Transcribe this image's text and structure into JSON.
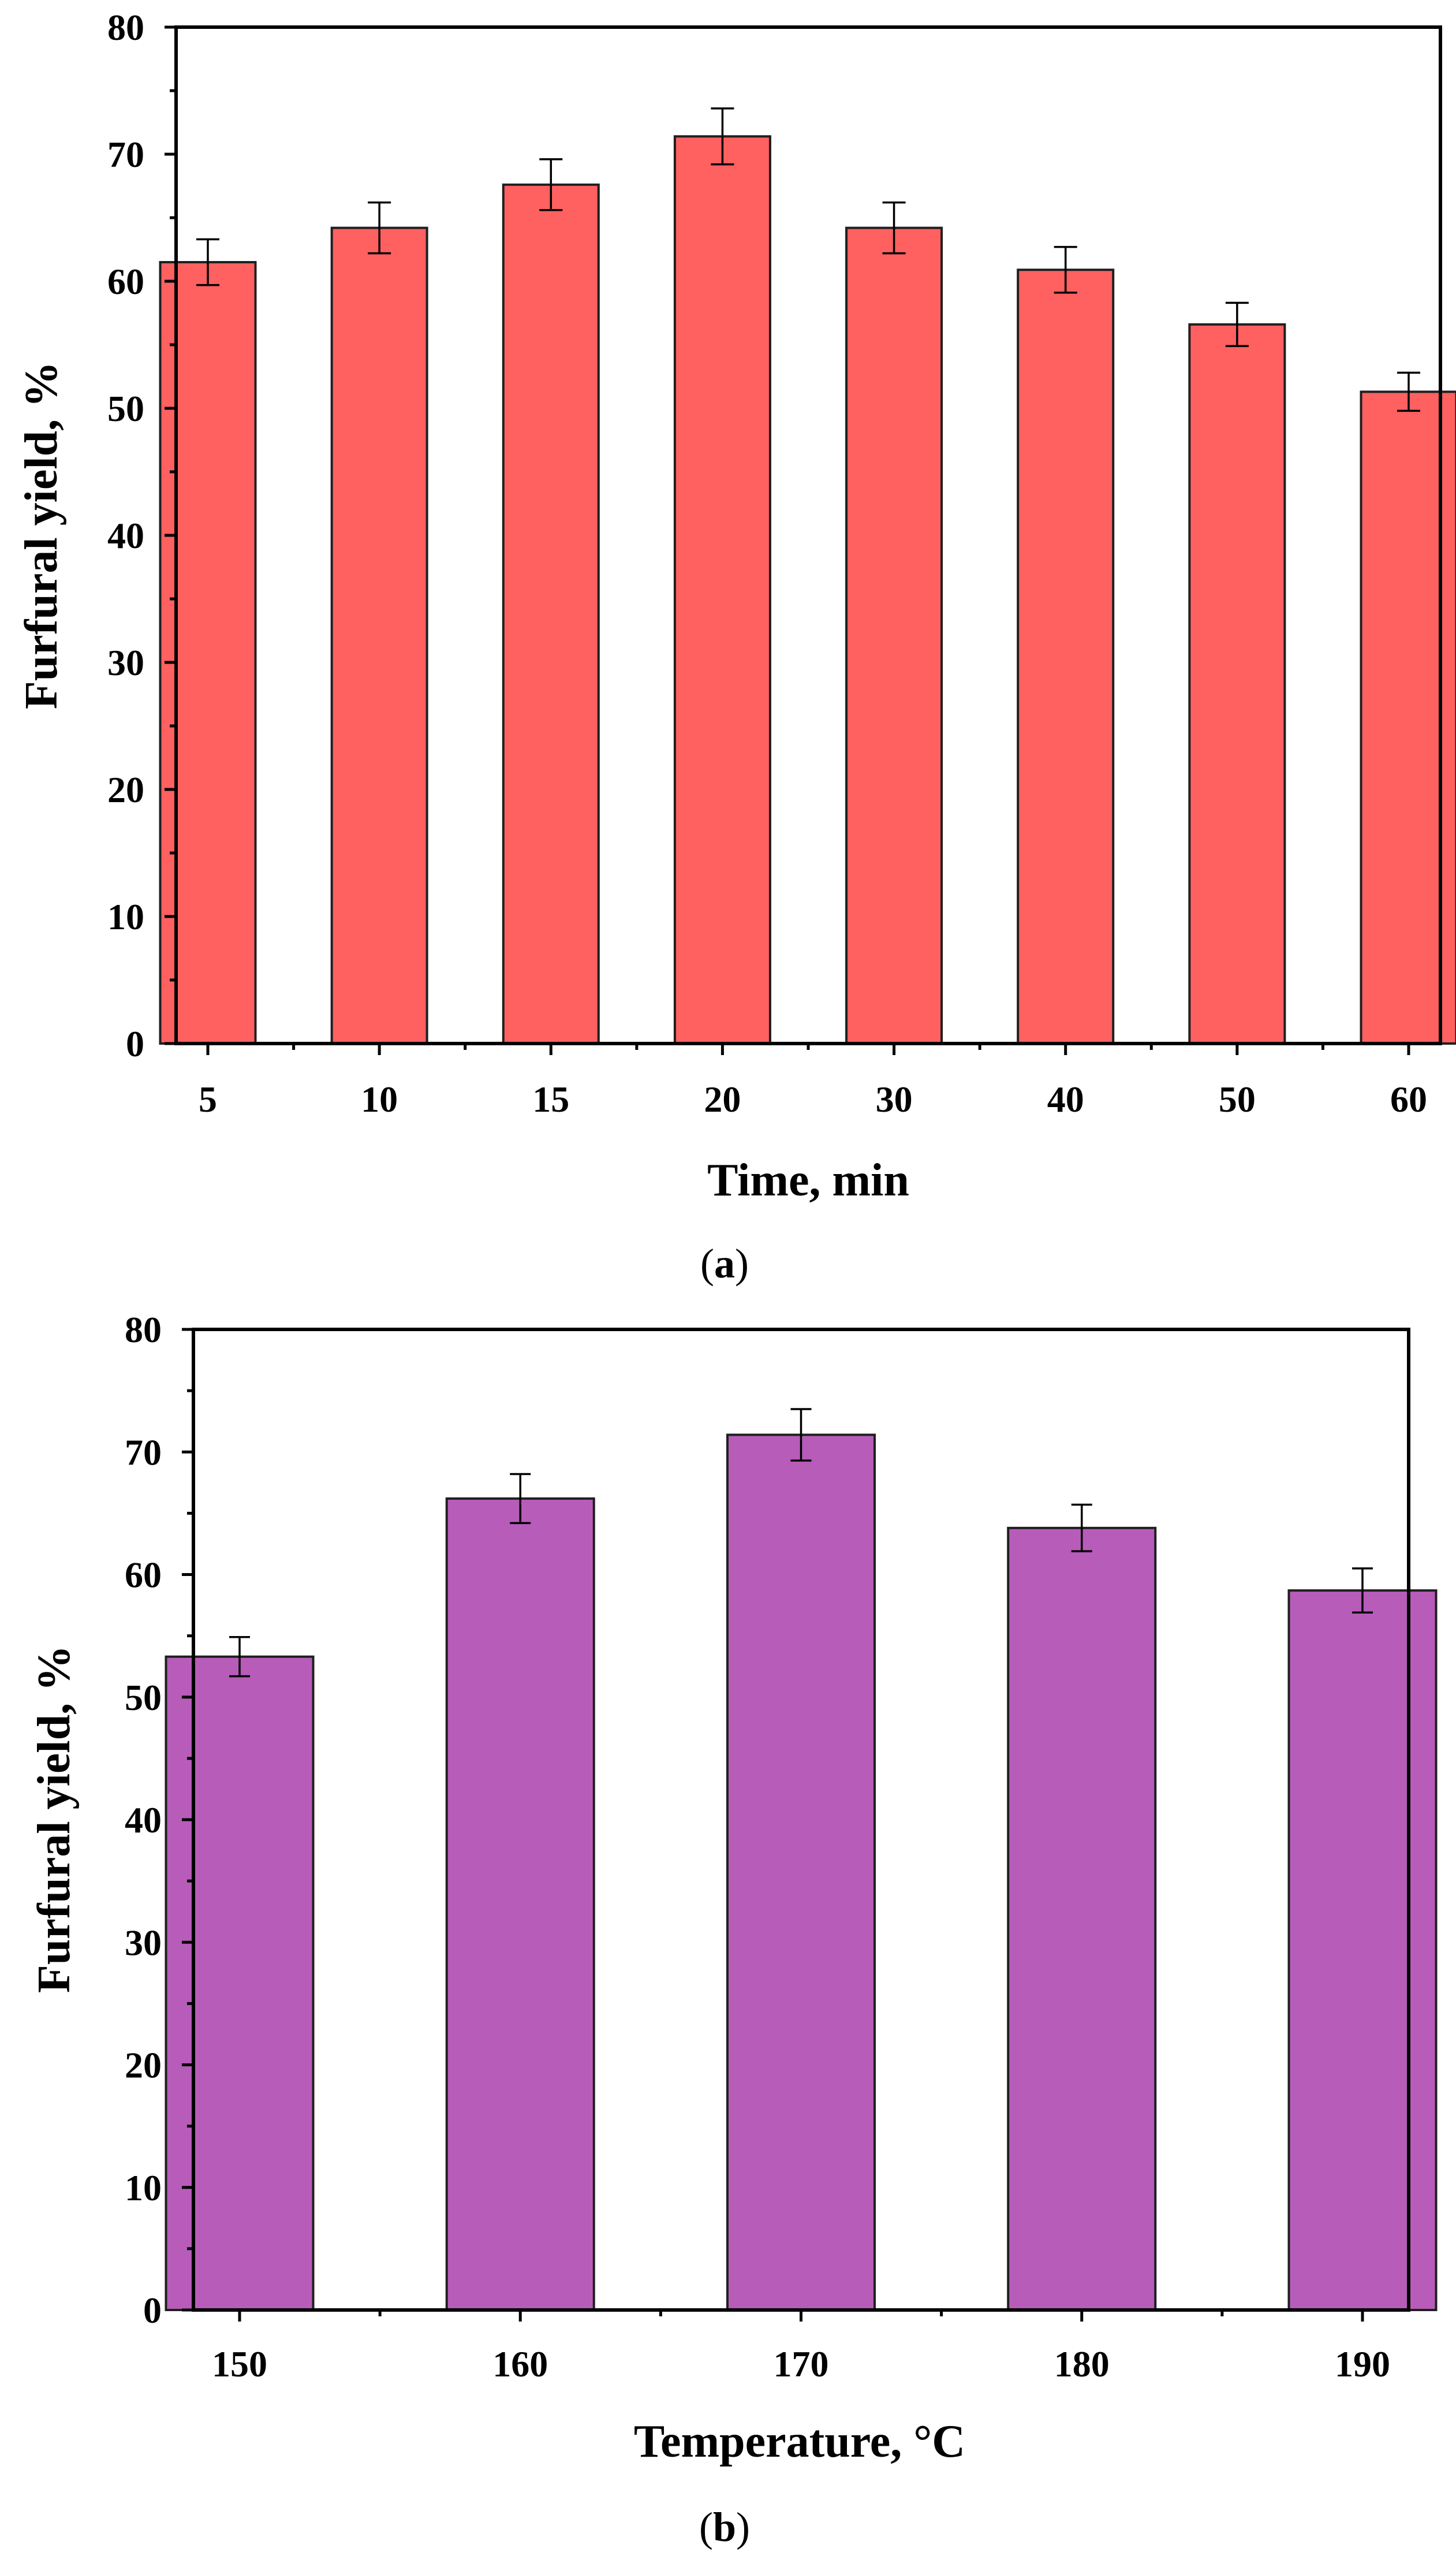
{
  "chart_data": [
    {
      "type": "bar",
      "panel_label": "a",
      "xlabel": "Time, min",
      "ylabel": "Furfural yield, %",
      "categories": [
        "5",
        "10",
        "15",
        "20",
        "30",
        "40",
        "50",
        "60"
      ],
      "values": [
        61.5,
        64.2,
        67.6,
        71.4,
        64.2,
        60.9,
        56.6,
        51.3
      ],
      "errors": [
        1.8,
        2.0,
        2.0,
        2.2,
        2.0,
        1.8,
        1.7,
        1.5
      ],
      "ylim": [
        0,
        80
      ],
      "yticks": [
        0,
        10,
        20,
        30,
        40,
        50,
        60,
        70,
        80
      ],
      "bar_color": "#ff6060",
      "grid": false
    },
    {
      "type": "bar",
      "panel_label": "b",
      "xlabel": "Temperature, °C",
      "ylabel": "Furfural yield, %",
      "categories": [
        "150",
        "160",
        "170",
        "180",
        "190"
      ],
      "values": [
        53.3,
        66.2,
        71.4,
        63.8,
        58.7
      ],
      "errors": [
        1.6,
        2.0,
        2.1,
        1.9,
        1.8
      ],
      "ylim": [
        0,
        80
      ],
      "yticks": [
        0,
        10,
        20,
        30,
        40,
        50,
        60,
        70,
        80
      ],
      "bar_color": "#b75cb9",
      "grid": false
    }
  ]
}
